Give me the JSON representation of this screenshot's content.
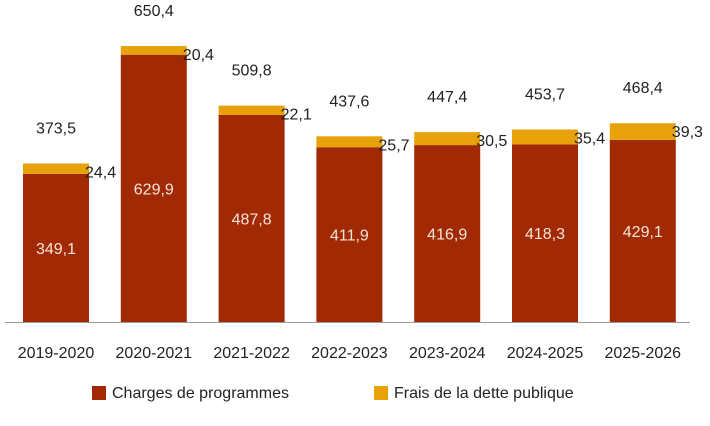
{
  "chart_data": {
    "type": "bar",
    "stacked": true,
    "categories": [
      "2019-2020",
      "2020-2021",
      "2021-2022",
      "2022-2023",
      "2023-2024",
      "2024-2025",
      "2025-2026"
    ],
    "series": [
      {
        "name": "Charges de programmes",
        "values": [
          349.1,
          629.9,
          487.8,
          411.9,
          416.9,
          418.3,
          429.1
        ],
        "labels": [
          "349,1",
          "629,9",
          "487,8",
          "411,9",
          "416,9",
          "418,3",
          "429,1"
        ],
        "color": "#A12A05"
      },
      {
        "name": "Frais de la dette publique",
        "values": [
          24.4,
          20.4,
          22.1,
          25.7,
          30.5,
          35.4,
          39.3
        ],
        "labels": [
          "24,4",
          "20,4",
          "22,1",
          "25,7",
          "30,5",
          "35,4",
          "39,3"
        ],
        "color": "#E7A20B"
      }
    ],
    "totals": [
      373.5,
      650.4,
      509.8,
      437.6,
      447.4,
      453.7,
      468.4
    ],
    "total_labels": [
      "373,5",
      "650,4",
      "509,8",
      "437,6",
      "447,4",
      "453,7",
      "468,4"
    ],
    "ylim": [
      0,
      650.4
    ],
    "grid": false,
    "legend_placement": "bottom",
    "colors": {
      "axis": "#9A9A9A",
      "text": "#222222",
      "inner_label": "#F6E3D8"
    }
  }
}
